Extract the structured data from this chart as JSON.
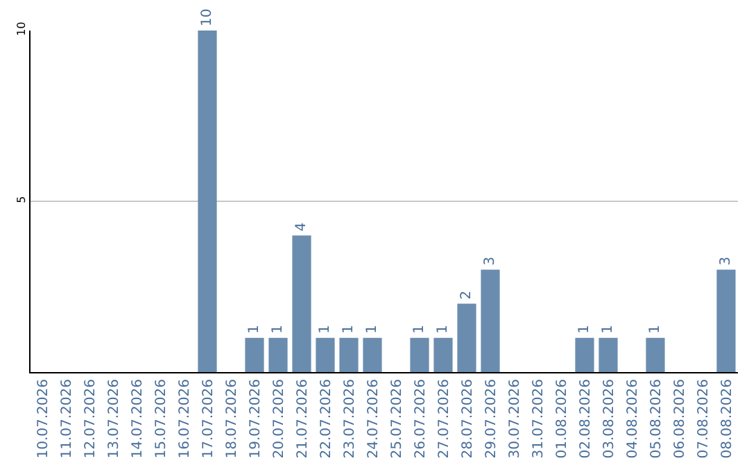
{
  "chart_data": {
    "type": "bar",
    "categories": [
      "10.07.2026",
      "11.07.2026",
      "12.07.2026",
      "13.07.2026",
      "14.07.2026",
      "15.07.2026",
      "16.07.2026",
      "17.07.2026",
      "18.07.2026",
      "19.07.2026",
      "20.07.2026",
      "21.07.2026",
      "22.07.2026",
      "23.07.2026",
      "24.07.2026",
      "25.07.2026",
      "26.07.2026",
      "27.07.2026",
      "28.07.2026",
      "29.07.2026",
      "30.07.2026",
      "31.07.2026",
      "01.08.2026",
      "02.08.2026",
      "03.08.2026",
      "04.08.2026",
      "05.08.2026",
      "06.08.2026",
      "07.08.2026",
      "08.08.2026"
    ],
    "values": [
      0,
      0,
      0,
      0,
      0,
      0,
      0,
      10,
      0,
      1,
      1,
      4,
      1,
      1,
      1,
      0,
      1,
      1,
      2,
      3,
      0,
      0,
      0,
      1,
      1,
      0,
      1,
      0,
      0,
      3
    ],
    "value_labels": [
      null,
      null,
      null,
      null,
      null,
      null,
      null,
      "10",
      null,
      "1",
      "1",
      "4",
      "1",
      "1",
      "1",
      null,
      "1",
      "1",
      "2",
      "3",
      null,
      null,
      null,
      "1",
      "1",
      null,
      "1",
      null,
      null,
      "3"
    ],
    "color": "#6a8caf",
    "ylim": [
      0,
      10
    ],
    "yticks": [
      5,
      10
    ],
    "grid": "y"
  }
}
